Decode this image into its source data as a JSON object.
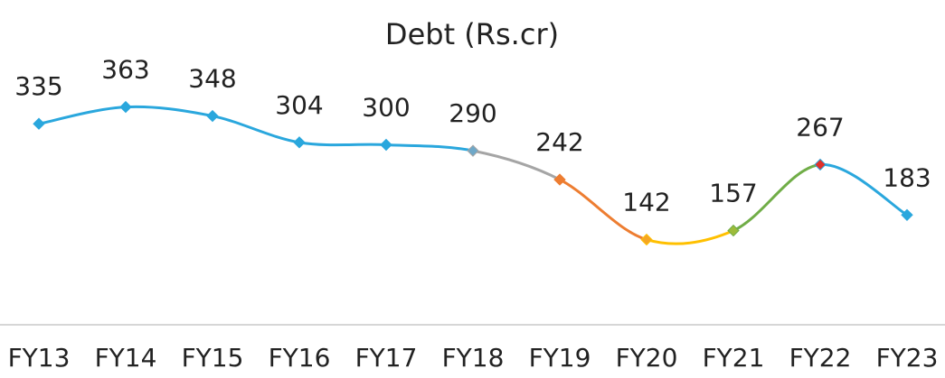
{
  "chart_data": {
    "type": "line",
    "title": "Debt (Rs.cr)",
    "categories": [
      "FY13",
      "FY14",
      "FY15",
      "FY16",
      "FY17",
      "FY18",
      "FY19",
      "FY20",
      "FY21",
      "FY22",
      "FY23"
    ],
    "values": [
      335,
      363,
      348,
      304,
      300,
      290,
      242,
      142,
      157,
      267,
      183
    ],
    "ylim": [
      0,
      400
    ],
    "smooth": true,
    "segment_colors": [
      "#2aa7dd",
      "#2aa7dd",
      "#2aa7dd",
      "#2aa7dd",
      "#2aa7dd",
      "#a5a5a5",
      "#ed7d31",
      "#ffc000",
      "#70ad47",
      "#2aa7dd"
    ],
    "point_colors": [
      "#2aa7dd",
      "#2aa7dd",
      "#2aa7dd",
      "#2aa7dd",
      "#2aa7dd",
      "#6fa8c8",
      "#ed7d31",
      "#f5a623",
      "#9dbb3a",
      "#e0302a",
      "#2aa7dd"
    ]
  }
}
